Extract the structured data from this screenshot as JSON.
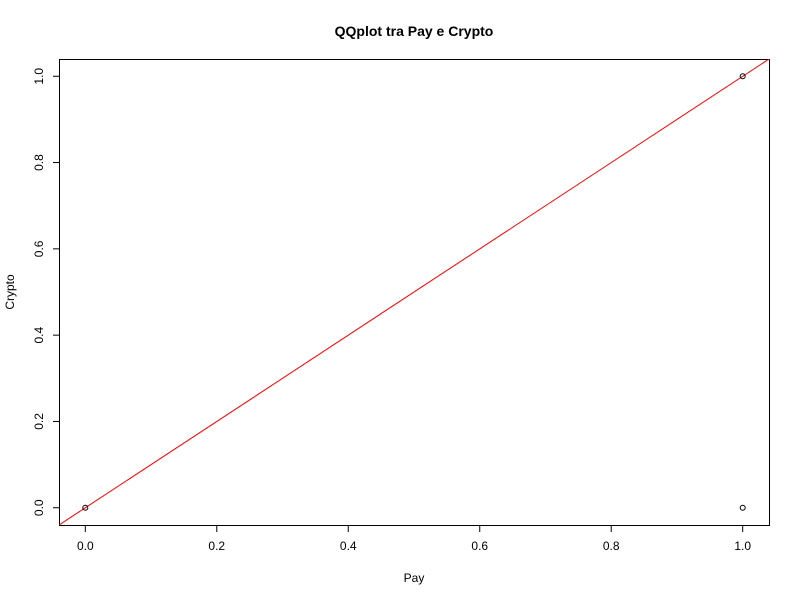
{
  "chart_data": {
    "type": "scatter",
    "title": "QQplot tra Pay e Crypto",
    "xlabel": "Pay",
    "ylabel": "Crypto",
    "xlim": [
      -0.04,
      1.04
    ],
    "ylim": [
      -0.04,
      1.04
    ],
    "x_ticks": [
      0.0,
      0.2,
      0.4,
      0.6,
      0.8,
      1.0
    ],
    "x_tick_labels": [
      "0.0",
      "0.2",
      "0.4",
      "0.6",
      "0.8",
      "1.0"
    ],
    "y_ticks": [
      0.0,
      0.2,
      0.4,
      0.6,
      0.8,
      1.0
    ],
    "y_tick_labels": [
      "0.0",
      "0.2",
      "0.4",
      "0.6",
      "0.8",
      "1.0"
    ],
    "points": [
      {
        "x": 0.0,
        "y": 0.0
      },
      {
        "x": 1.0,
        "y": 1.0
      },
      {
        "x": 1.0,
        "y": 0.0
      }
    ],
    "reference_line": {
      "intercept": 0,
      "slope": 1,
      "color": "#ff0000"
    },
    "point_style": "open-circle",
    "grid": false,
    "legend": "none"
  }
}
